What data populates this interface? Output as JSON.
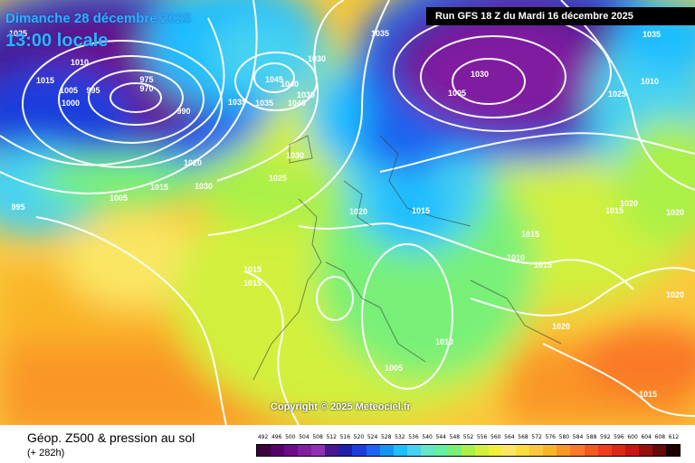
{
  "header": {
    "date": "Dimanche 28 décembre 2025",
    "time": "13:00 locale",
    "run": "Run GFS 18 Z du Mardi 16 décembre 2025"
  },
  "legend": {
    "title": "Géop. Z500 & pression au sol",
    "lead": "(+ 282h)",
    "values": [
      "492",
      "496",
      "500",
      "504",
      "508",
      "512",
      "516",
      "520",
      "524",
      "528",
      "532",
      "536",
      "540",
      "544",
      "548",
      "552",
      "556",
      "560",
      "564",
      "568",
      "572",
      "576",
      "580",
      "584",
      "588",
      "592",
      "596",
      "600",
      "604",
      "608",
      "612"
    ],
    "colors": [
      "#3c003c",
      "#55006a",
      "#6a0c88",
      "#801ea0",
      "#8f2fb4",
      "#4a168f",
      "#1e1eaa",
      "#1e3cdc",
      "#1e64f0",
      "#1496f0",
      "#1ebeff",
      "#46d2f0",
      "#64e6c8",
      "#64f0a0",
      "#78f078",
      "#aaf046",
      "#d2f03c",
      "#f0f03c",
      "#fae664",
      "#fadc3c",
      "#fac83c",
      "#fab428",
      "#fa9628",
      "#fa7828",
      "#f05a1e",
      "#f03c1e",
      "#dc2814",
      "#c81414",
      "#961010",
      "#640a0a",
      "#1a0000"
    ]
  },
  "copyright": "Copyright © 2025 Meteociel.fr",
  "pressure_labels": [
    "1025",
    "1010",
    "1015",
    "1005",
    "995",
    "1000",
    "975",
    "970",
    "990",
    "1020",
    "1030",
    "1035",
    "1040",
    "1045",
    "1040",
    "1030",
    "1035",
    "1030",
    "995",
    "1005",
    "1015",
    "1030",
    "1025",
    "1020",
    "1015",
    "1015",
    "1015",
    "1010",
    "1015",
    "1005",
    "1010",
    "1035",
    "1010",
    "1005",
    "1025",
    "1030",
    "1035",
    "1020",
    "1015",
    "1020",
    "1020",
    "1015",
    "1020",
    "1015"
  ]
}
